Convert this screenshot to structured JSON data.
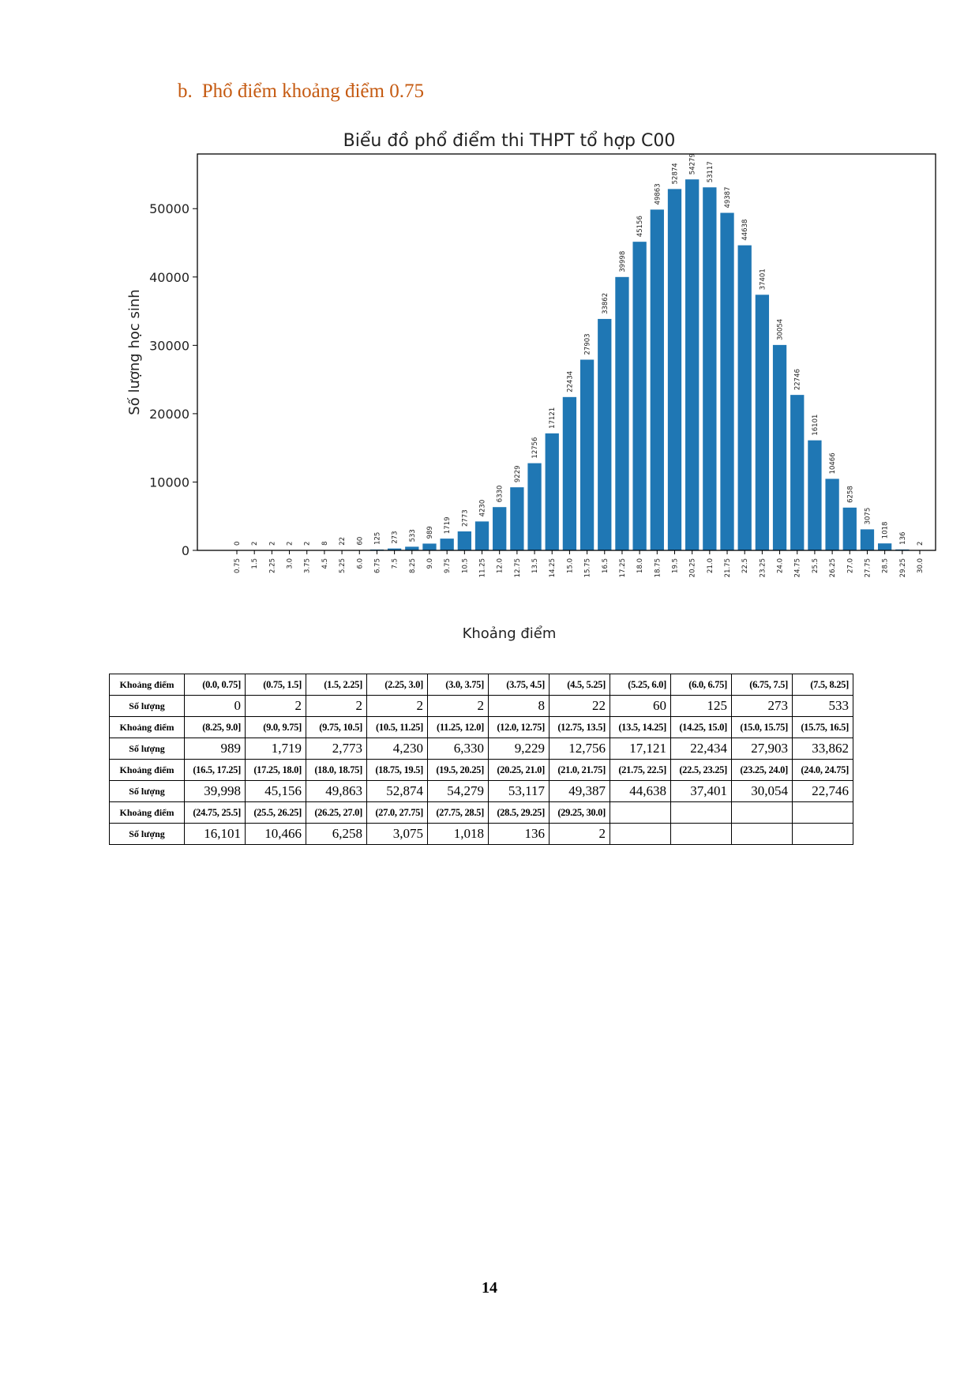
{
  "heading": {
    "marker": "b.",
    "text": "Phổ điểm khoảng điểm 0.75"
  },
  "chart_data": {
    "type": "bar",
    "title": "Biểu đồ phổ điểm thi THPT tổ hợp C00",
    "xlabel": "Khoảng điểm",
    "ylabel": "Số lượng học sinh",
    "ylim": [
      0,
      58000
    ],
    "yticks": [
      0,
      10000,
      20000,
      30000,
      40000,
      50000
    ],
    "grid": false,
    "bar_color": "#1f77b4",
    "categories": [
      "0.75",
      "1.5",
      "2.25",
      "3.0",
      "3.75",
      "4.5",
      "5.25",
      "6.0",
      "6.75",
      "7.5",
      "8.25",
      "9.0",
      "9.75",
      "10.5",
      "11.25",
      "12.0",
      "12.75",
      "13.5",
      "14.25",
      "15.0",
      "15.75",
      "16.5",
      "17.25",
      "18.0",
      "18.75",
      "19.5",
      "20.25",
      "21.0",
      "21.75",
      "22.5",
      "23.25",
      "24.0",
      "24.75",
      "25.5",
      "26.25",
      "27.0",
      "27.75",
      "28.5",
      "29.25",
      "30.0"
    ],
    "values": [
      0,
      2,
      2,
      2,
      2,
      8,
      22,
      60,
      125,
      273,
      533,
      989,
      1719,
      2773,
      4230,
      6330,
      9229,
      12756,
      17121,
      22434,
      27903,
      33862,
      39998,
      45156,
      49863,
      52874,
      54279,
      53117,
      49387,
      44638,
      37401,
      30054,
      22746,
      16101,
      10466,
      6258,
      3075,
      1018,
      136,
      2
    ]
  },
  "table": {
    "header_interval": "Khoảng điểm",
    "header_count": "Số lượng",
    "rows": [
      {
        "intervals": [
          "(0.0, 0.75]",
          "(0.75, 1.5]",
          "(1.5, 2.25]",
          "(2.25, 3.0]",
          "(3.0, 3.75]",
          "(3.75, 4.5]",
          "(4.5, 5.25]",
          "(5.25, 6.0]",
          "(6.0, 6.75]",
          "(6.75, 7.5]",
          "(7.5, 8.25]"
        ],
        "counts": [
          "0",
          "2",
          "2",
          "2",
          "2",
          "8",
          "22",
          "60",
          "125",
          "273",
          "533"
        ]
      },
      {
        "intervals": [
          "(8.25, 9.0]",
          "(9.0, 9.75]",
          "(9.75, 10.5]",
          "(10.5, 11.25]",
          "(11.25, 12.0]",
          "(12.0, 12.75]",
          "(12.75, 13.5]",
          "(13.5, 14.25]",
          "(14.25, 15.0]",
          "(15.0, 15.75]",
          "(15.75, 16.5]"
        ],
        "counts": [
          "989",
          "1,719",
          "2,773",
          "4,230",
          "6,330",
          "9,229",
          "12,756",
          "17,121",
          "22,434",
          "27,903",
          "33,862"
        ]
      },
      {
        "intervals": [
          "(16.5, 17.25]",
          "(17.25, 18.0]",
          "(18.0, 18.75]",
          "(18.75, 19.5]",
          "(19.5, 20.25]",
          "(20.25, 21.0]",
          "(21.0, 21.75]",
          "(21.75, 22.5]",
          "(22.5, 23.25]",
          "(23.25, 24.0]",
          "(24.0, 24.75]"
        ],
        "counts": [
          "39,998",
          "45,156",
          "49,863",
          "52,874",
          "54,279",
          "53,117",
          "49,387",
          "44,638",
          "37,401",
          "30,054",
          "22,746"
        ]
      },
      {
        "intervals": [
          "(24.75, 25.5]",
          "(25.5, 26.25]",
          "(26.25, 27.0]",
          "(27.0, 27.75]",
          "(27.75, 28.5]",
          "(28.5, 29.25]",
          "(29.25, 30.0]",
          "",
          "",
          "",
          ""
        ],
        "counts": [
          "16,101",
          "10,466",
          "6,258",
          "3,075",
          "1,018",
          "136",
          "2",
          "",
          "",
          "",
          ""
        ]
      }
    ]
  },
  "page_number": "14"
}
